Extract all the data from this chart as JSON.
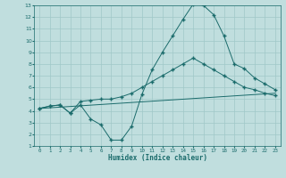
{
  "title": "",
  "xlabel": "Humidex (Indice chaleur)",
  "bg_color": "#c0dede",
  "grid_color": "#a0c8c8",
  "line_color": "#1a6b6b",
  "xlim": [
    -0.5,
    23.5
  ],
  "ylim": [
    1,
    13
  ],
  "xticks": [
    0,
    1,
    2,
    3,
    4,
    5,
    6,
    7,
    8,
    9,
    10,
    11,
    12,
    13,
    14,
    15,
    16,
    17,
    18,
    19,
    20,
    21,
    22,
    23
  ],
  "yticks": [
    1,
    2,
    3,
    4,
    5,
    6,
    7,
    8,
    9,
    10,
    11,
    12,
    13
  ],
  "line1_x": [
    0,
    1,
    2,
    3,
    4,
    5,
    6,
    7,
    8,
    9,
    10,
    11,
    12,
    13,
    14,
    15,
    16,
    17,
    18,
    19,
    20,
    21,
    22,
    23
  ],
  "line1_y": [
    4.2,
    4.4,
    4.5,
    3.8,
    4.8,
    4.9,
    5.0,
    5.0,
    5.2,
    5.5,
    6.0,
    6.5,
    7.0,
    7.5,
    8.0,
    8.5,
    8.0,
    7.5,
    7.0,
    6.5,
    6.0,
    5.8,
    5.5,
    5.3
  ],
  "line2_x": [
    0,
    1,
    2,
    3,
    4,
    5,
    6,
    7,
    8,
    9,
    10,
    11,
    12,
    13,
    14,
    15,
    16,
    17,
    18,
    19,
    20,
    21,
    22,
    23
  ],
  "line2_y": [
    4.2,
    4.4,
    4.5,
    3.8,
    4.5,
    3.3,
    2.8,
    1.5,
    1.5,
    2.7,
    5.4,
    7.5,
    9.0,
    10.4,
    11.8,
    13.1,
    13.0,
    12.2,
    10.4,
    8.0,
    7.6,
    6.8,
    6.3,
    5.8
  ],
  "line3_x": [
    0,
    23
  ],
  "line3_y": [
    4.2,
    5.5
  ],
  "marker": "+"
}
